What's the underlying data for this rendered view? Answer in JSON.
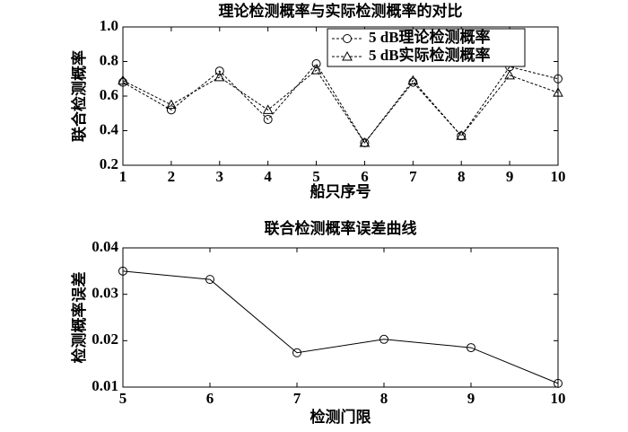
{
  "chart_data": [
    {
      "type": "line",
      "title": "理论检测概率与实际检测概率的对比",
      "x_label": "船只序号",
      "y_label": "联合检测概率",
      "x": [
        1,
        2,
        3,
        4,
        5,
        6,
        7,
        8,
        9,
        10
      ],
      "series": [
        {
          "name": "5 dB理论检测概率",
          "color": "#000000",
          "marker": "circle",
          "linestyle": "dashed",
          "values": [
            0.68,
            0.52,
            0.745,
            0.465,
            0.787,
            0.33,
            0.68,
            0.37,
            0.77,
            0.7
          ]
        },
        {
          "name": "5 dB实际检测概率",
          "color": "#000000",
          "marker": "triangle",
          "linestyle": "dashed",
          "values": [
            0.69,
            0.55,
            0.71,
            0.52,
            0.75,
            0.33,
            0.69,
            0.37,
            0.72,
            0.62
          ]
        }
      ],
      "xlim": [
        1,
        10
      ],
      "xticks": [
        1,
        2,
        3,
        4,
        5,
        6,
        7,
        8,
        9,
        10
      ],
      "ylim": [
        0.2,
        1
      ],
      "yticks": [
        0.2,
        0.4,
        0.6,
        0.8,
        {
          "value": 1,
          "label": "1.0"
        }
      ],
      "legend": "upper right"
    },
    {
      "type": "line",
      "title": "联合检测概率误差曲线",
      "x_label": "检测门限",
      "y_label": "检测概率误差",
      "x": [
        5,
        6,
        7,
        8,
        9,
        10
      ],
      "series": [
        {
          "color": "#000000",
          "marker": "circle",
          "linestyle": "solid",
          "values": [
            0.035,
            0.0332,
            0.0174,
            0.0203,
            0.0185,
            0.0108
          ]
        }
      ],
      "xlim": [
        5,
        10
      ],
      "xticks": [
        5,
        6,
        7,
        8,
        9,
        10
      ],
      "ylim": [
        0.01,
        0.04
      ],
      "yticks": [
        0.01,
        0.02,
        0.03,
        0.04
      ]
    }
  ]
}
